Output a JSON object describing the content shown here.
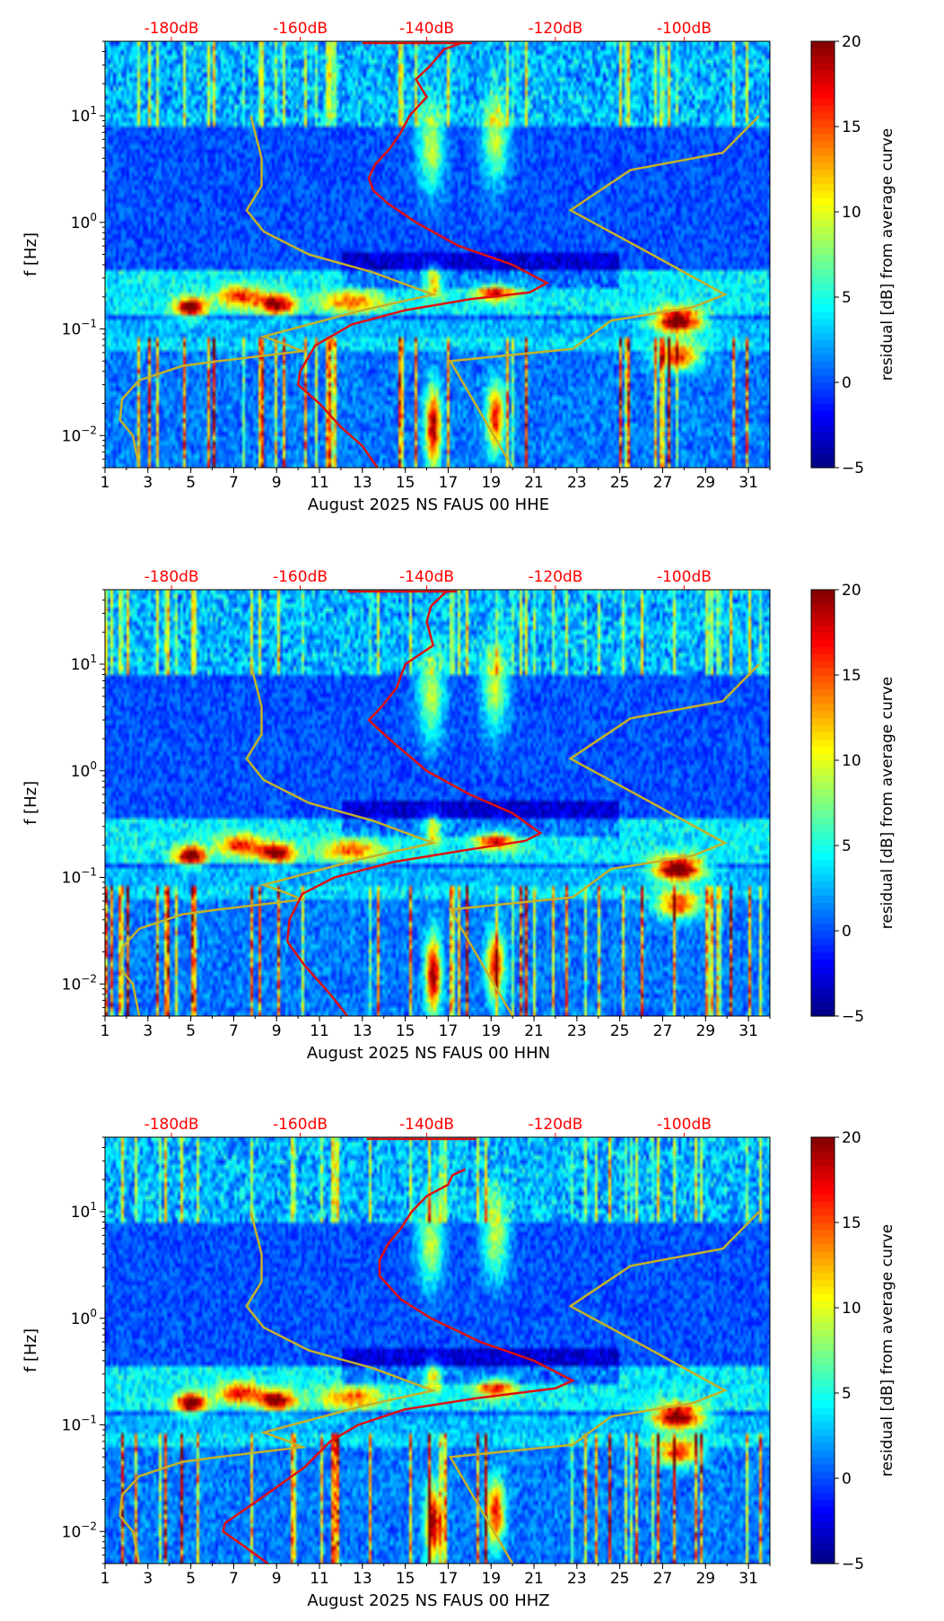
{
  "colors": {
    "db_axis": "#ff0000",
    "median_curve": "#dd1111",
    "noise_model": "#c4b12a",
    "colormap": [
      "#00007f",
      "#0000ff",
      "#007fff",
      "#00ffff",
      "#7fff7f",
      "#ffff00",
      "#ff7f00",
      "#ff0000",
      "#7f0000"
    ]
  },
  "chart_data": [
    {
      "type": "heatmap",
      "title": "",
      "xlabel": "August 2025 NS FAUS 00 HHE",
      "ylabel": "f [Hz]",
      "x_range": [
        1,
        32
      ],
      "x_ticks": [
        1,
        3,
        5,
        7,
        9,
        11,
        13,
        15,
        17,
        19,
        21,
        23,
        25,
        27,
        29,
        31
      ],
      "y_range": [
        0.005,
        50
      ],
      "y_scale": "log",
      "y_ticks": [
        {
          "value": 0.01,
          "base": "10",
          "exp": "−2"
        },
        {
          "value": 0.1,
          "base": "10",
          "exp": "−1"
        },
        {
          "value": 1,
          "base": "10",
          "exp": "0"
        },
        {
          "value": 10,
          "base": "10",
          "exp": "1"
        }
      ],
      "top_axis_ticks": [
        {
          "label": "-180dB",
          "day": 4.1
        },
        {
          "label": "-160dB",
          "day": 10.1
        },
        {
          "label": "-140dB",
          "day": 16.0
        },
        {
          "label": "-120dB",
          "day": 22.0
        },
        {
          "label": "-100dB",
          "day": 28.0
        }
      ],
      "colorbar": {
        "label": "residual [dB] from average curve",
        "min": -5,
        "max": 20,
        "ticks": [
          -5,
          0,
          5,
          10,
          15,
          20
        ]
      },
      "noise_model_high": [
        [
          7.8,
          10
        ],
        [
          8.3,
          4
        ],
        [
          8.3,
          2.2
        ],
        [
          7.6,
          1.3
        ],
        [
          8.4,
          0.82
        ],
        [
          10.5,
          0.5
        ],
        [
          13.5,
          0.34
        ],
        [
          16.3,
          0.21
        ],
        [
          13.0,
          0.15
        ],
        [
          8.4,
          0.085
        ],
        [
          9.4,
          0.072
        ],
        [
          10.2,
          0.062
        ],
        [
          6.3,
          0.05
        ],
        [
          4.6,
          0.045
        ],
        [
          2.6,
          0.033
        ],
        [
          1.8,
          0.022
        ],
        [
          1.7,
          0.014
        ],
        [
          2.3,
          0.01
        ],
        [
          2.6,
          0.005
        ]
      ],
      "noise_model_low": [
        [
          31.5,
          10
        ],
        [
          29.8,
          4.5
        ],
        [
          25.5,
          3.1
        ],
        [
          22.7,
          1.3
        ],
        [
          26.5,
          0.5
        ],
        [
          29.9,
          0.21
        ],
        [
          28.4,
          0.16
        ],
        [
          25.7,
          0.13
        ],
        [
          24.6,
          0.12
        ],
        [
          22.8,
          0.065
        ],
        [
          17.1,
          0.05
        ],
        [
          20,
          0.005
        ]
      ],
      "median_curve": [
        [
          17.6,
          48
        ],
        [
          16.8,
          42
        ],
        [
          16.2,
          30
        ],
        [
          15.5,
          22
        ],
        [
          16,
          15
        ],
        [
          15.2,
          10
        ],
        [
          14.8,
          7
        ],
        [
          14.3,
          5
        ],
        [
          13.6,
          3.5
        ],
        [
          13.3,
          2.6
        ],
        [
          13.5,
          2
        ],
        [
          14.2,
          1.5
        ],
        [
          15.5,
          1
        ],
        [
          17.5,
          0.6
        ],
        [
          20,
          0.4
        ],
        [
          21.6,
          0.27
        ],
        [
          20.8,
          0.22
        ],
        [
          18,
          0.19
        ],
        [
          15,
          0.15
        ],
        [
          12.5,
          0.11
        ],
        [
          10.8,
          0.07
        ],
        [
          10.1,
          0.04
        ],
        [
          10,
          0.03
        ],
        [
          11,
          0.02
        ],
        [
          12,
          0.012
        ],
        [
          13,
          0.008
        ],
        [
          13.7,
          0.005
        ]
      ],
      "hotspots": [
        {
          "day": 5.0,
          "f": 0.16,
          "v": 19,
          "rd": 0.7,
          "rf": 0.09
        },
        {
          "day": 9.0,
          "f": 0.17,
          "v": 18,
          "rd": 0.8,
          "rf": 0.09
        },
        {
          "day": 7.3,
          "f": 0.2,
          "v": 13,
          "rd": 1.0,
          "rf": 0.1
        },
        {
          "day": 12.5,
          "f": 0.18,
          "v": 11,
          "rd": 1.4,
          "rf": 0.1
        },
        {
          "day": 27.7,
          "f": 0.12,
          "v": 21,
          "rd": 1.1,
          "rf": 0.11
        },
        {
          "day": 27.7,
          "f": 0.055,
          "v": 15,
          "rd": 1.0,
          "rf": 0.12
        },
        {
          "day": 16.3,
          "f": 0.012,
          "v": 19,
          "rd": 0.35,
          "rf": 0.35
        },
        {
          "day": 19.2,
          "f": 0.015,
          "v": 16,
          "rd": 0.4,
          "rf": 0.3
        },
        {
          "day": 16.2,
          "f": 5,
          "v": 9,
          "rd": 0.6,
          "rf": 0.4
        },
        {
          "day": 19.2,
          "f": 6,
          "v": 9,
          "rd": 0.6,
          "rf": 0.4
        },
        {
          "day": 16.3,
          "f": 0.28,
          "v": 10,
          "rd": 0.4,
          "rf": 0.15
        },
        {
          "day": 19.2,
          "f": 0.22,
          "v": 14,
          "rd": 0.9,
          "rf": 0.08
        }
      ]
    },
    {
      "type": "heatmap",
      "title": "",
      "xlabel": "August 2025 NS FAUS 00 HHN",
      "ylabel": "f [Hz]",
      "x_range": [
        1,
        32
      ],
      "x_ticks": [
        1,
        3,
        5,
        7,
        9,
        11,
        13,
        15,
        17,
        19,
        21,
        23,
        25,
        27,
        29,
        31
      ],
      "y_range": [
        0.005,
        50
      ],
      "y_scale": "log",
      "y_ticks": [
        {
          "value": 0.01,
          "base": "10",
          "exp": "−2"
        },
        {
          "value": 0.1,
          "base": "10",
          "exp": "−1"
        },
        {
          "value": 1,
          "base": "10",
          "exp": "0"
        },
        {
          "value": 10,
          "base": "10",
          "exp": "1"
        }
      ],
      "top_axis_ticks": [
        {
          "label": "-180dB",
          "day": 4.1
        },
        {
          "label": "-160dB",
          "day": 10.1
        },
        {
          "label": "-140dB",
          "day": 16.0
        },
        {
          "label": "-120dB",
          "day": 22.0
        },
        {
          "label": "-100dB",
          "day": 28.0
        }
      ],
      "colorbar": {
        "label": "residual [dB] from average curve",
        "min": -5,
        "max": 20,
        "ticks": [
          -5,
          0,
          5,
          10,
          15,
          20
        ]
      },
      "noise_model_high": [
        [
          7.8,
          10
        ],
        [
          8.3,
          4
        ],
        [
          8.3,
          2.2
        ],
        [
          7.6,
          1.3
        ],
        [
          8.4,
          0.82
        ],
        [
          10.5,
          0.5
        ],
        [
          13.5,
          0.34
        ],
        [
          16.3,
          0.21
        ],
        [
          13.0,
          0.15
        ],
        [
          8.4,
          0.085
        ],
        [
          9.4,
          0.072
        ],
        [
          10.2,
          0.062
        ],
        [
          6.3,
          0.05
        ],
        [
          4.6,
          0.045
        ],
        [
          2.6,
          0.033
        ],
        [
          1.8,
          0.022
        ],
        [
          1.7,
          0.014
        ],
        [
          2.3,
          0.01
        ],
        [
          2.6,
          0.005
        ]
      ],
      "noise_model_low": [
        [
          31.5,
          10
        ],
        [
          29.8,
          4.5
        ],
        [
          25.5,
          3.1
        ],
        [
          22.7,
          1.3
        ],
        [
          26.5,
          0.5
        ],
        [
          29.9,
          0.21
        ],
        [
          28.4,
          0.16
        ],
        [
          25.7,
          0.13
        ],
        [
          24.6,
          0.12
        ],
        [
          22.8,
          0.065
        ],
        [
          17.1,
          0.05
        ],
        [
          20,
          0.005
        ]
      ],
      "median_curve": [
        [
          16.9,
          48
        ],
        [
          16.2,
          35
        ],
        [
          16,
          25
        ],
        [
          16.3,
          15
        ],
        [
          15,
          10
        ],
        [
          14.6,
          6
        ],
        [
          13.9,
          4
        ],
        [
          13.3,
          3
        ],
        [
          13.8,
          2.4
        ],
        [
          14.5,
          1.8
        ],
        [
          16,
          1
        ],
        [
          18,
          0.6
        ],
        [
          20,
          0.4
        ],
        [
          21.3,
          0.26
        ],
        [
          20.6,
          0.22
        ],
        [
          17.8,
          0.18
        ],
        [
          14.5,
          0.14
        ],
        [
          11.7,
          0.1
        ],
        [
          10.2,
          0.07
        ],
        [
          9.6,
          0.04
        ],
        [
          9.5,
          0.025
        ],
        [
          10.3,
          0.015
        ],
        [
          11.5,
          0.008
        ],
        [
          12.3,
          0.005
        ]
      ],
      "hotspots": [
        {
          "day": 5.0,
          "f": 0.16,
          "v": 19,
          "rd": 0.7,
          "rf": 0.09
        },
        {
          "day": 9.0,
          "f": 0.17,
          "v": 18,
          "rd": 0.8,
          "rf": 0.09
        },
        {
          "day": 7.3,
          "f": 0.2,
          "v": 13,
          "rd": 1.0,
          "rf": 0.1
        },
        {
          "day": 12.5,
          "f": 0.18,
          "v": 11,
          "rd": 1.4,
          "rf": 0.1
        },
        {
          "day": 27.7,
          "f": 0.12,
          "v": 21,
          "rd": 1.1,
          "rf": 0.11
        },
        {
          "day": 27.7,
          "f": 0.055,
          "v": 15,
          "rd": 1.0,
          "rf": 0.12
        },
        {
          "day": 16.3,
          "f": 0.012,
          "v": 19,
          "rd": 0.35,
          "rf": 0.35
        },
        {
          "day": 19.2,
          "f": 0.015,
          "v": 16,
          "rd": 0.4,
          "rf": 0.3
        },
        {
          "day": 16.2,
          "f": 5,
          "v": 9,
          "rd": 0.6,
          "rf": 0.4
        },
        {
          "day": 19.2,
          "f": 6,
          "v": 9,
          "rd": 0.6,
          "rf": 0.4
        },
        {
          "day": 16.3,
          "f": 0.28,
          "v": 10,
          "rd": 0.4,
          "rf": 0.15
        },
        {
          "day": 19.2,
          "f": 0.22,
          "v": 14,
          "rd": 0.9,
          "rf": 0.08
        }
      ]
    },
    {
      "type": "heatmap",
      "title": "",
      "xlabel": "August 2025 NS FAUS 00 HHZ",
      "ylabel": "f [Hz]",
      "x_range": [
        1,
        32
      ],
      "x_ticks": [
        1,
        3,
        5,
        7,
        9,
        11,
        13,
        15,
        17,
        19,
        21,
        23,
        25,
        27,
        29,
        31
      ],
      "y_range": [
        0.005,
        50
      ],
      "y_scale": "log",
      "y_ticks": [
        {
          "value": 0.01,
          "base": "10",
          "exp": "−2"
        },
        {
          "value": 0.1,
          "base": "10",
          "exp": "−1"
        },
        {
          "value": 1,
          "base": "10",
          "exp": "0"
        },
        {
          "value": 10,
          "base": "10",
          "exp": "1"
        }
      ],
      "top_axis_ticks": [
        {
          "label": "-180dB",
          "day": 4.1
        },
        {
          "label": "-160dB",
          "day": 10.1
        },
        {
          "label": "-140dB",
          "day": 16.0
        },
        {
          "label": "-120dB",
          "day": 22.0
        },
        {
          "label": "-100dB",
          "day": 28.0
        }
      ],
      "colorbar": {
        "label": "residual [dB] from average curve",
        "min": -5,
        "max": 20,
        "ticks": [
          -5,
          0,
          5,
          10,
          15,
          20
        ]
      },
      "noise_model_high": [
        [
          7.8,
          10
        ],
        [
          8.3,
          4
        ],
        [
          8.3,
          2.2
        ],
        [
          7.6,
          1.3
        ],
        [
          8.4,
          0.82
        ],
        [
          10.5,
          0.5
        ],
        [
          13.5,
          0.34
        ],
        [
          16.3,
          0.21
        ],
        [
          13.0,
          0.15
        ],
        [
          8.4,
          0.085
        ],
        [
          9.4,
          0.072
        ],
        [
          10.2,
          0.062
        ],
        [
          6.3,
          0.05
        ],
        [
          4.6,
          0.045
        ],
        [
          2.6,
          0.033
        ],
        [
          1.8,
          0.022
        ],
        [
          1.7,
          0.014
        ],
        [
          2.3,
          0.01
        ],
        [
          2.6,
          0.005
        ]
      ],
      "noise_model_low": [
        [
          31.5,
          10
        ],
        [
          29.8,
          4.5
        ],
        [
          25.5,
          3.1
        ],
        [
          22.7,
          1.3
        ],
        [
          26.5,
          0.5
        ],
        [
          29.9,
          0.21
        ],
        [
          28.4,
          0.16
        ],
        [
          25.7,
          0.13
        ],
        [
          24.6,
          0.12
        ],
        [
          22.8,
          0.065
        ],
        [
          17.1,
          0.05
        ],
        [
          20,
          0.005
        ]
      ],
      "median_curve": [
        [
          17.8,
          25
        ],
        [
          17.2,
          22
        ],
        [
          17,
          18
        ],
        [
          16,
          14
        ],
        [
          15.3,
          10
        ],
        [
          14.8,
          7
        ],
        [
          14.2,
          5
        ],
        [
          13.8,
          3.5
        ],
        [
          13.8,
          2.5
        ],
        [
          14.8,
          1.5
        ],
        [
          16.2,
          1
        ],
        [
          18.5,
          0.6
        ],
        [
          21,
          0.4
        ],
        [
          22.8,
          0.26
        ],
        [
          22,
          0.22
        ],
        [
          18.5,
          0.18
        ],
        [
          15,
          0.14
        ],
        [
          12.8,
          0.1
        ],
        [
          11.5,
          0.07
        ],
        [
          10.3,
          0.04
        ],
        [
          8.2,
          0.02
        ],
        [
          6.6,
          0.012
        ],
        [
          6.5,
          0.01
        ],
        [
          7.2,
          0.008
        ],
        [
          8.6,
          0.005
        ]
      ],
      "hotspots": [
        {
          "day": 5.0,
          "f": 0.16,
          "v": 19,
          "rd": 0.7,
          "rf": 0.09
        },
        {
          "day": 9.0,
          "f": 0.17,
          "v": 18,
          "rd": 0.8,
          "rf": 0.09
        },
        {
          "day": 7.3,
          "f": 0.2,
          "v": 13,
          "rd": 1.0,
          "rf": 0.1
        },
        {
          "day": 12.5,
          "f": 0.18,
          "v": 11,
          "rd": 1.4,
          "rf": 0.1
        },
        {
          "day": 27.7,
          "f": 0.12,
          "v": 21,
          "rd": 1.1,
          "rf": 0.11
        },
        {
          "day": 27.7,
          "f": 0.055,
          "v": 15,
          "rd": 1.0,
          "rf": 0.12
        },
        {
          "day": 16.3,
          "f": 0.012,
          "v": 19,
          "rd": 0.35,
          "rf": 0.35
        },
        {
          "day": 19.2,
          "f": 0.015,
          "v": 16,
          "rd": 0.4,
          "rf": 0.3
        },
        {
          "day": 16.2,
          "f": 5,
          "v": 9,
          "rd": 0.6,
          "rf": 0.4
        },
        {
          "day": 19.2,
          "f": 6,
          "v": 9,
          "rd": 0.6,
          "rf": 0.4
        },
        {
          "day": 16.3,
          "f": 0.28,
          "v": 10,
          "rd": 0.4,
          "rf": 0.15
        },
        {
          "day": 19.2,
          "f": 0.22,
          "v": 14,
          "rd": 0.9,
          "rf": 0.08
        }
      ]
    }
  ]
}
